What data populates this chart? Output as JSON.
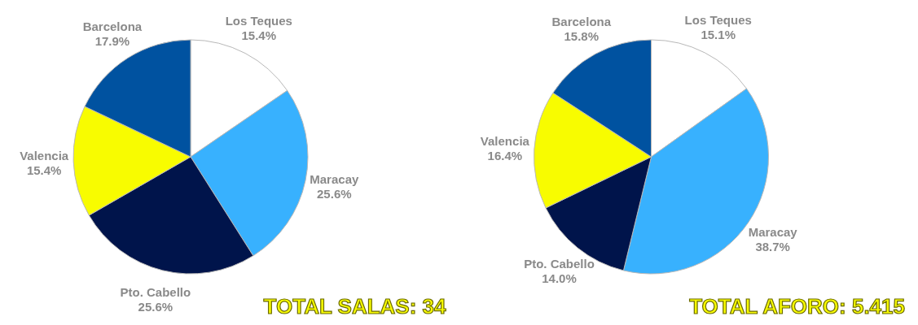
{
  "chart_data": [
    {
      "type": "pie",
      "categories": [
        "Los Teques",
        "Maracay",
        "Pto. Cabello",
        "Valencia",
        "Barcelona"
      ],
      "values": [
        15.4,
        25.6,
        25.6,
        15.4,
        17.9
      ],
      "value_labels": [
        "15.4%",
        "25.6%",
        "25.6%",
        "15.4%",
        "17.9%"
      ],
      "colors": [
        "#ffffff",
        "#38b1fe",
        "#00144b",
        "#f8fc00",
        "#0052a0"
      ],
      "annotations": [
        "TOTAL SALAS: 34"
      ]
    },
    {
      "type": "pie",
      "categories": [
        "Los Teques",
        "Maracay",
        "Pto. Cabello",
        "Valencia",
        "Barcelona"
      ],
      "values": [
        15.1,
        38.7,
        14.0,
        16.4,
        15.8
      ],
      "value_labels": [
        "15.1%",
        "38.7%",
        "14.0%",
        "16.4%",
        "15.8%"
      ],
      "colors": [
        "#ffffff",
        "#38b1fe",
        "#00144b",
        "#f8fc00",
        "#0052a0"
      ],
      "annotations": [
        "TOTAL AFORO:  5.415"
      ]
    }
  ]
}
